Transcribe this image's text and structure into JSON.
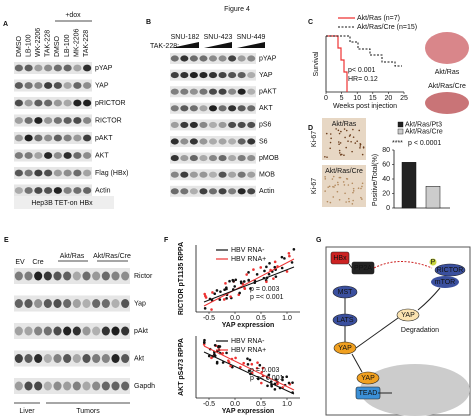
{
  "title": "Figure 4",
  "panel_a": {
    "label": "A",
    "dox": "+dox",
    "lanes": [
      "DMSO",
      "LB-100",
      "WK-2206",
      "TAK-228",
      "DMSO",
      "LB-100",
      "MK-2206",
      "TAK-228"
    ],
    "rows": [
      "pYAP",
      "YAP",
      "pRICTOR",
      "RICTOR",
      "pAKT",
      "AKT",
      "Flag (HBx)",
      "Actin"
    ],
    "footer": "Hep3B TET-on HBx"
  },
  "panel_b": {
    "label": "B",
    "treatment": "TAK-228:",
    "cell_lines": [
      "SNU-182",
      "SNU-423",
      "SNU-449"
    ],
    "rows": [
      "pYAP",
      "YAP",
      "pAKT",
      "AKT",
      "pS6",
      "S6",
      "pMOB",
      "MOB",
      "Actin"
    ]
  },
  "panel_c": {
    "label": "C",
    "legend": [
      "Akt/Ras (n=7)",
      "Akt/Ras/Cre (n=15)"
    ],
    "y_label": "Survival",
    "p_value": "p< 0.001",
    "hr": "HR= 0.12",
    "x_label": "Weeks post injection",
    "xlim": [
      0,
      25
    ],
    "xticks": [
      0,
      5,
      10,
      15,
      20,
      25
    ],
    "images": [
      "Akt/Ras",
      "Akt/Ras/Cre"
    ]
  },
  "panel_d": {
    "label": "D",
    "images": [
      {
        "title": "Akt/Ras",
        "stain": "Ki-67"
      },
      {
        "title": "Akt/Ras/Cre",
        "stain": "Ki-67"
      }
    ],
    "chart_data": {
      "type": "bar",
      "categories": [
        "Akt/Ras/Pt3",
        "Akt/Ras/Cre"
      ],
      "values": [
        63,
        30
      ],
      "colors": [
        "#222222",
        "#cccccc"
      ],
      "significance": "****",
      "p_value": "p < 0.0001",
      "y_label": "Positive/Total(%)",
      "ylim": [
        0,
        80
      ],
      "yticks": [
        0,
        20,
        40,
        60,
        80
      ]
    }
  },
  "panel_e": {
    "label": "E",
    "groups": [
      "EV",
      "Cre",
      "Akt/Ras",
      "Akt/Ras/Cre"
    ],
    "rows": [
      "Rictor",
      "Yap",
      "pAkt",
      "Akt",
      "Gapdh"
    ],
    "tissues": [
      "Liver",
      "Tumors"
    ]
  },
  "panel_f": {
    "label": "F",
    "plots": [
      {
        "y_label": "RICTOR pT1135 RPPA",
        "legend": [
          "HBV RNA-",
          "HBV RNA+"
        ],
        "p_values": [
          "p = 0.003",
          "p =< 0.001"
        ],
        "x_label": "YAP expression",
        "xlim": [
          -0.75,
          1.25
        ],
        "xticks": [
          -0.5,
          {
            "value": 0,
            "label": "0.0"
          },
          0.5,
          {
            "value": 1,
            "label": "1.0"
          }
        ]
      },
      {
        "y_label": "AKT pS473 RPPA",
        "legend": [
          "HBV RNA-",
          "HBV RNA+"
        ],
        "p_values": [
          "p = 0.003",
          "p =< 0.001"
        ],
        "x_label": "YAP expression",
        "xlim": [
          -0.75,
          1.25
        ],
        "xticks": [
          -0.5,
          {
            "value": 0,
            "label": "0.0"
          },
          0.5,
          {
            "value": 1,
            "label": "1.0"
          }
        ]
      }
    ]
  },
  "panel_g": {
    "label": "G",
    "nodes": [
      "HBx",
      "PP2A",
      "MST",
      "LATS",
      "YAP",
      "YAP",
      "TEAD",
      "RICTOR",
      "mTOR",
      "YAP",
      "Degradation",
      "P"
    ]
  }
}
